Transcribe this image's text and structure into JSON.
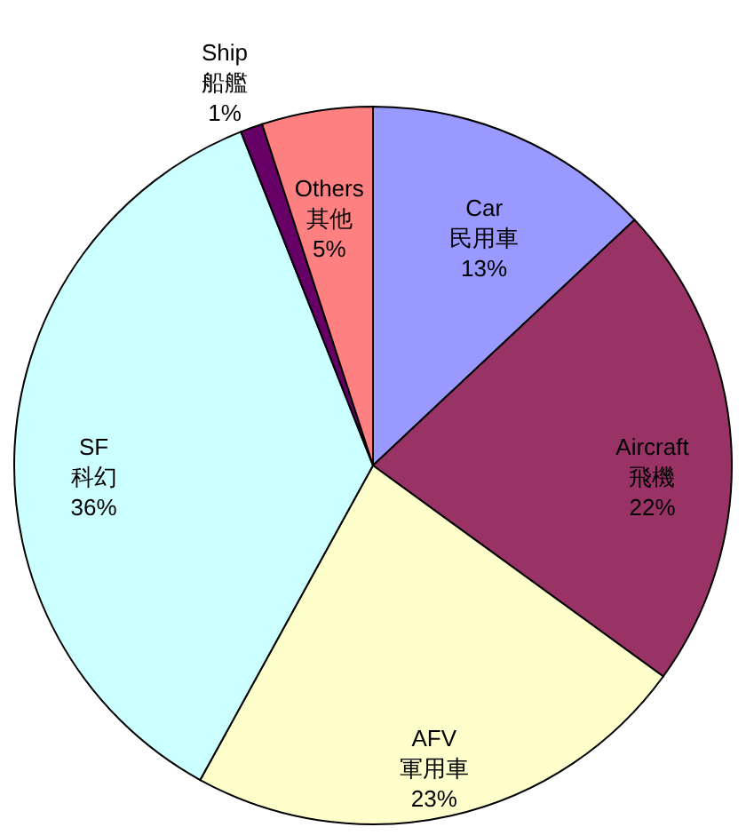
{
  "chart_data": {
    "type": "pie",
    "categories": [
      "Car\n民用車",
      "Aircraft\n飛機",
      "AFV\n軍用車",
      "SF\n科幻",
      "Ship\n船艦",
      "Others\n其他"
    ],
    "values": [
      13,
      22,
      23,
      36,
      1,
      5
    ],
    "colors": [
      "#9999ff",
      "#993366",
      "#ffffcc",
      "#ccffff",
      "#660066",
      "#ff8080"
    ],
    "value_labels": [
      "13%",
      "22%",
      "23%",
      "36%",
      "1%",
      "5%"
    ]
  }
}
